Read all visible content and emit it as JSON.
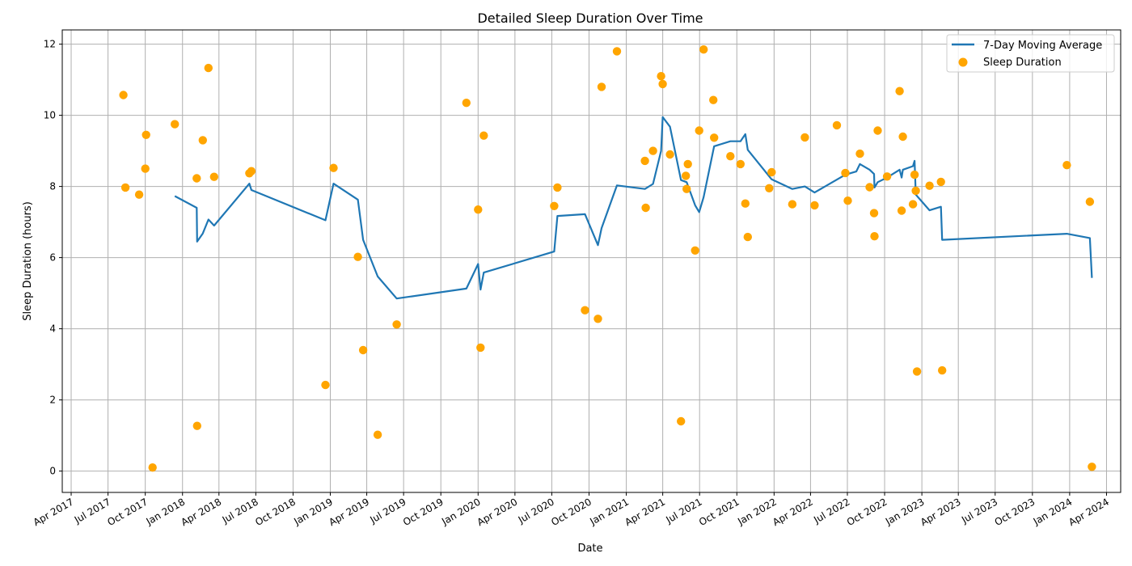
{
  "chart_data": {
    "type": "scatter",
    "title": "Detailed Sleep Duration Over Time",
    "xlabel": "Date",
    "ylabel": "Sleep Duration (hours)",
    "xlim": [
      "2017-03-10",
      "2024-05-06"
    ],
    "ylim": [
      -0.6,
      12.4
    ],
    "grid": true,
    "legend_position": "top-right",
    "x_ticks": [
      "2017-04-01",
      "2017-07-01",
      "2017-10-01",
      "2018-01-01",
      "2018-04-01",
      "2018-07-01",
      "2018-10-01",
      "2019-01-01",
      "2019-04-01",
      "2019-07-01",
      "2019-10-01",
      "2020-01-01",
      "2020-04-01",
      "2020-07-01",
      "2020-10-01",
      "2021-01-01",
      "2021-04-01",
      "2021-07-01",
      "2021-10-01",
      "2022-01-01",
      "2022-04-01",
      "2022-07-01",
      "2022-10-01",
      "2023-01-01",
      "2023-04-01",
      "2023-07-01",
      "2023-10-01",
      "2024-01-01",
      "2024-04-01"
    ],
    "x_tick_labels": [
      "Apr 2017",
      "Jul 2017",
      "Oct 2017",
      "Jan 2018",
      "Apr 2018",
      "Jul 2018",
      "Oct 2018",
      "Jan 2019",
      "Apr 2019",
      "Jul 2019",
      "Oct 2019",
      "Jan 2020",
      "Apr 2020",
      "Jul 2020",
      "Oct 2020",
      "Jan 2021",
      "Apr 2021",
      "Jul 2021",
      "Oct 2021",
      "Jan 2022",
      "Apr 2022",
      "Jul 2022",
      "Oct 2022",
      "Jan 2023",
      "Apr 2023",
      "Jul 2023",
      "Oct 2023",
      "Jan 2024",
      "Apr 2024"
    ],
    "y_ticks": [
      0,
      2,
      4,
      6,
      8,
      10,
      12
    ],
    "colors": {
      "scatter": "#FFA500",
      "line": "#1f77b4",
      "grid": "#b0b0b0"
    },
    "series": [
      {
        "name": "Sleep Duration",
        "type": "scatter",
        "points": [
          {
            "x": "2017-08-08",
            "y": 10.57
          },
          {
            "x": "2017-08-13",
            "y": 7.97
          },
          {
            "x": "2017-09-16",
            "y": 7.77
          },
          {
            "x": "2017-10-01",
            "y": 8.5
          },
          {
            "x": "2017-10-03",
            "y": 9.45
          },
          {
            "x": "2017-10-19",
            "y": 0.1
          },
          {
            "x": "2017-12-13",
            "y": 9.75
          },
          {
            "x": "2018-02-05",
            "y": 8.23
          },
          {
            "x": "2018-02-06",
            "y": 1.27
          },
          {
            "x": "2018-02-20",
            "y": 9.3
          },
          {
            "x": "2018-03-06",
            "y": 11.33
          },
          {
            "x": "2018-03-20",
            "y": 8.27
          },
          {
            "x": "2018-06-15",
            "y": 8.37
          },
          {
            "x": "2018-06-20",
            "y": 8.43
          },
          {
            "x": "2018-12-20",
            "y": 2.42
          },
          {
            "x": "2019-01-09",
            "y": 8.52
          },
          {
            "x": "2019-03-10",
            "y": 6.02
          },
          {
            "x": "2019-03-23",
            "y": 3.4
          },
          {
            "x": "2019-04-28",
            "y": 1.02
          },
          {
            "x": "2019-06-14",
            "y": 4.12
          },
          {
            "x": "2019-12-03",
            "y": 10.35
          },
          {
            "x": "2020-01-01",
            "y": 7.35
          },
          {
            "x": "2020-01-07",
            "y": 3.47
          },
          {
            "x": "2020-01-15",
            "y": 9.43
          },
          {
            "x": "2020-07-07",
            "y": 7.45
          },
          {
            "x": "2020-07-15",
            "y": 7.97
          },
          {
            "x": "2020-09-21",
            "y": 4.52
          },
          {
            "x": "2020-10-23",
            "y": 4.28
          },
          {
            "x": "2020-11-01",
            "y": 10.8
          },
          {
            "x": "2020-12-09",
            "y": 11.8
          },
          {
            "x": "2021-02-16",
            "y": 8.72
          },
          {
            "x": "2021-02-18",
            "y": 7.4
          },
          {
            "x": "2021-03-08",
            "y": 9.0
          },
          {
            "x": "2021-03-28",
            "y": 11.1
          },
          {
            "x": "2021-04-01",
            "y": 10.88
          },
          {
            "x": "2021-04-19",
            "y": 8.9
          },
          {
            "x": "2021-05-16",
            "y": 1.4
          },
          {
            "x": "2021-05-28",
            "y": 8.3
          },
          {
            "x": "2021-05-30",
            "y": 7.93
          },
          {
            "x": "2021-06-02",
            "y": 8.63
          },
          {
            "x": "2021-06-20",
            "y": 6.2
          },
          {
            "x": "2021-06-30",
            "y": 9.57
          },
          {
            "x": "2021-07-11",
            "y": 11.85
          },
          {
            "x": "2021-08-04",
            "y": 10.43
          },
          {
            "x": "2021-08-06",
            "y": 9.37
          },
          {
            "x": "2021-09-15",
            "y": 8.85
          },
          {
            "x": "2021-10-10",
            "y": 8.63
          },
          {
            "x": "2021-10-22",
            "y": 7.52
          },
          {
            "x": "2021-10-28",
            "y": 6.58
          },
          {
            "x": "2021-12-20",
            "y": 7.95
          },
          {
            "x": "2021-12-26",
            "y": 8.4
          },
          {
            "x": "2022-02-15",
            "y": 7.5
          },
          {
            "x": "2022-03-18",
            "y": 9.38
          },
          {
            "x": "2022-04-11",
            "y": 7.47
          },
          {
            "x": "2022-06-05",
            "y": 9.72
          },
          {
            "x": "2022-06-26",
            "y": 8.38
          },
          {
            "x": "2022-07-02",
            "y": 7.6
          },
          {
            "x": "2022-08-01",
            "y": 8.92
          },
          {
            "x": "2022-08-25",
            "y": 7.98
          },
          {
            "x": "2022-09-05",
            "y": 7.25
          },
          {
            "x": "2022-09-06",
            "y": 6.6
          },
          {
            "x": "2022-09-14",
            "y": 9.57
          },
          {
            "x": "2022-10-07",
            "y": 8.28
          },
          {
            "x": "2022-11-07",
            "y": 10.68
          },
          {
            "x": "2022-11-12",
            "y": 7.32
          },
          {
            "x": "2022-11-15",
            "y": 9.4
          },
          {
            "x": "2022-12-10",
            "y": 7.5
          },
          {
            "x": "2022-12-14",
            "y": 8.33
          },
          {
            "x": "2022-12-17",
            "y": 7.88
          },
          {
            "x": "2022-12-20",
            "y": 2.8
          },
          {
            "x": "2023-01-20",
            "y": 8.02
          },
          {
            "x": "2023-02-17",
            "y": 8.13
          },
          {
            "x": "2023-02-20",
            "y": 2.83
          },
          {
            "x": "2023-12-25",
            "y": 8.6
          },
          {
            "x": "2024-02-20",
            "y": 7.57
          },
          {
            "x": "2024-02-25",
            "y": 0.12
          }
        ]
      },
      {
        "name": "7-Day Moving Average",
        "type": "line",
        "points": [
          {
            "x": "2017-12-13",
            "y": 7.73
          },
          {
            "x": "2018-02-05",
            "y": 7.4
          },
          {
            "x": "2018-02-06",
            "y": 6.45
          },
          {
            "x": "2018-02-20",
            "y": 6.68
          },
          {
            "x": "2018-03-06",
            "y": 7.07
          },
          {
            "x": "2018-03-20",
            "y": 6.9
          },
          {
            "x": "2018-06-15",
            "y": 8.08
          },
          {
            "x": "2018-06-20",
            "y": 7.9
          },
          {
            "x": "2018-12-20",
            "y": 7.05
          },
          {
            "x": "2019-01-09",
            "y": 8.08
          },
          {
            "x": "2019-03-10",
            "y": 7.63
          },
          {
            "x": "2019-03-23",
            "y": 6.5
          },
          {
            "x": "2019-04-28",
            "y": 5.47
          },
          {
            "x": "2019-06-14",
            "y": 4.85
          },
          {
            "x": "2019-12-03",
            "y": 5.13
          },
          {
            "x": "2020-01-01",
            "y": 5.82
          },
          {
            "x": "2020-01-07",
            "y": 5.1
          },
          {
            "x": "2020-01-15",
            "y": 5.58
          },
          {
            "x": "2020-07-07",
            "y": 6.17
          },
          {
            "x": "2020-07-15",
            "y": 7.17
          },
          {
            "x": "2020-09-21",
            "y": 7.22
          },
          {
            "x": "2020-10-23",
            "y": 6.35
          },
          {
            "x": "2020-11-01",
            "y": 6.83
          },
          {
            "x": "2020-12-09",
            "y": 8.03
          },
          {
            "x": "2021-02-16",
            "y": 7.93
          },
          {
            "x": "2021-03-08",
            "y": 8.07
          },
          {
            "x": "2021-03-28",
            "y": 9.0
          },
          {
            "x": "2021-04-01",
            "y": 9.95
          },
          {
            "x": "2021-04-19",
            "y": 9.68
          },
          {
            "x": "2021-05-16",
            "y": 8.18
          },
          {
            "x": "2021-05-30",
            "y": 8.12
          },
          {
            "x": "2021-06-20",
            "y": 7.47
          },
          {
            "x": "2021-06-30",
            "y": 7.28
          },
          {
            "x": "2021-07-11",
            "y": 7.7
          },
          {
            "x": "2021-08-06",
            "y": 9.13
          },
          {
            "x": "2021-09-15",
            "y": 9.27
          },
          {
            "x": "2021-10-10",
            "y": 9.27
          },
          {
            "x": "2021-10-22",
            "y": 9.47
          },
          {
            "x": "2021-10-28",
            "y": 9.03
          },
          {
            "x": "2021-12-26",
            "y": 8.2
          },
          {
            "x": "2022-02-15",
            "y": 7.93
          },
          {
            "x": "2022-03-18",
            "y": 8.0
          },
          {
            "x": "2022-04-11",
            "y": 7.83
          },
          {
            "x": "2022-06-26",
            "y": 8.33
          },
          {
            "x": "2022-07-23",
            "y": 8.42
          },
          {
            "x": "2022-08-01",
            "y": 8.63
          },
          {
            "x": "2022-08-25",
            "y": 8.47
          },
          {
            "x": "2022-09-05",
            "y": 8.35
          },
          {
            "x": "2022-09-06",
            "y": 7.97
          },
          {
            "x": "2022-09-14",
            "y": 8.12
          },
          {
            "x": "2022-10-07",
            "y": 8.25
          },
          {
            "x": "2022-11-07",
            "y": 8.47
          },
          {
            "x": "2022-11-12",
            "y": 8.25
          },
          {
            "x": "2022-11-15",
            "y": 8.47
          },
          {
            "x": "2022-12-10",
            "y": 8.57
          },
          {
            "x": "2022-12-14",
            "y": 8.72
          },
          {
            "x": "2022-12-17",
            "y": 7.77
          },
          {
            "x": "2023-01-20",
            "y": 7.33
          },
          {
            "x": "2023-02-17",
            "y": 7.43
          },
          {
            "x": "2023-02-20",
            "y": 6.5
          },
          {
            "x": "2023-12-25",
            "y": 6.67
          },
          {
            "x": "2024-02-20",
            "y": 6.55
          },
          {
            "x": "2024-02-25",
            "y": 5.43
          }
        ]
      }
    ]
  }
}
